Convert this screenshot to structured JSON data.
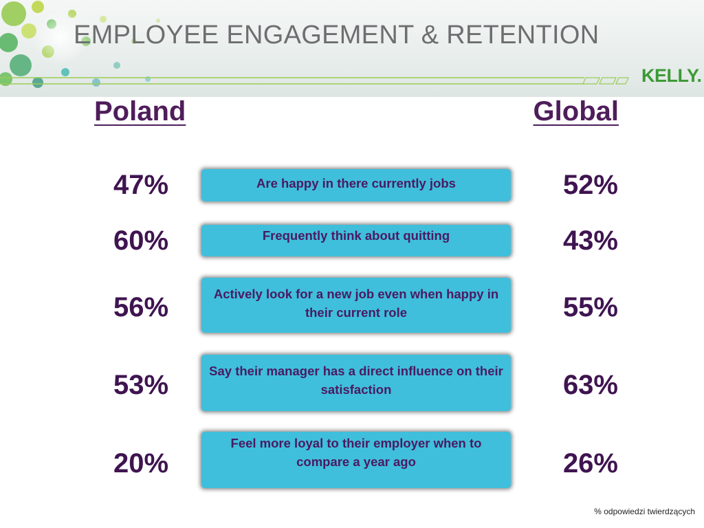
{
  "header": {
    "title": "EMPLOYEE ENGAGEMENT & RETENTION",
    "logo": "KELLY."
  },
  "columns": {
    "left": "Poland",
    "right": "Global"
  },
  "rows": [
    {
      "poland": "47%",
      "label": "Are happy in there currently jobs",
      "global": "52%"
    },
    {
      "poland": "60%",
      "label": "Frequently think about quitting",
      "global": "43%"
    },
    {
      "poland": "56%",
      "label": "Actively look for a new job even when happy in their current role",
      "global": "55%"
    },
    {
      "poland": "53%",
      "label": "Say their manager has a direct influence on their satisfaction",
      "global": "63%"
    },
    {
      "poland": "20%",
      "label": "Feel more loyal to their employer when to compare a year ago",
      "global": "26%"
    }
  ],
  "footnote": "% odpowiedzi twierdzących",
  "colors": {
    "accent_purple": "#4f1d5b",
    "box_cyan": "#3fbfdc",
    "logo_green": "#3c9a35",
    "title_grey": "#6d6e70"
  }
}
